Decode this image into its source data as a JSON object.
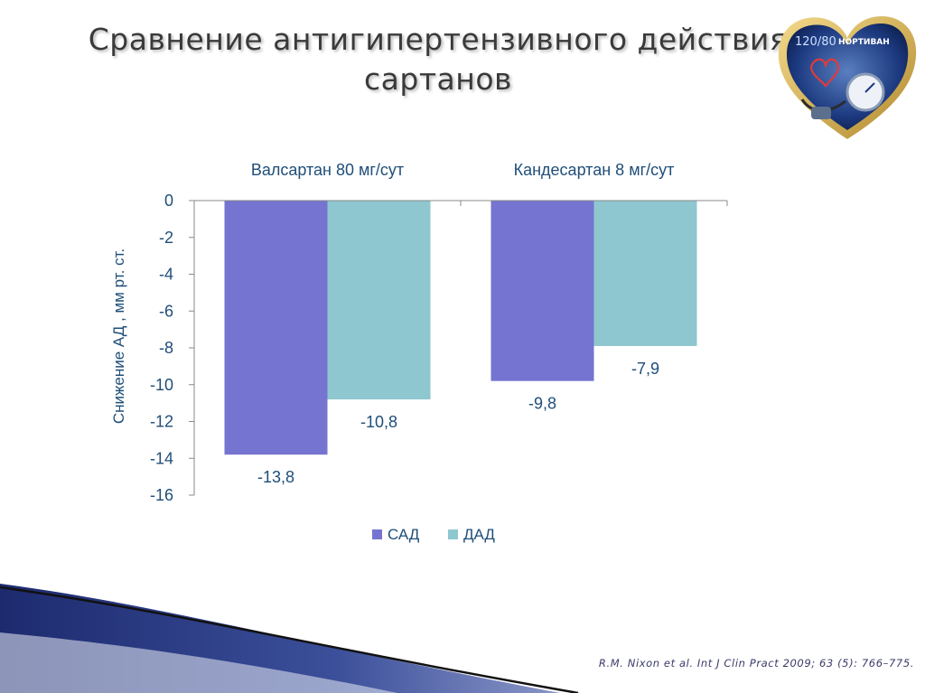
{
  "slide": {
    "title_line1": "Сравнение антигипертензивного действия",
    "title_line2": "сартанов",
    "logo_text_bp": "120/80",
    "logo_text_brand": "НОРТИВАН",
    "citation": "R.M. Nixon et al. Int J Clin Pract 2009; 63 (5): 766–775."
  },
  "colors": {
    "sad": "#7574d0",
    "dad": "#8ec7cf",
    "axis_text": "#1f4e79",
    "value_text": "#1f4e79"
  },
  "chart_data": {
    "type": "bar",
    "categories": [
      "Валсартан 80 мг/сут",
      "Кандесартан 8 мг/сут"
    ],
    "series": [
      {
        "name": "САД",
        "values": [
          -13.8,
          -9.8
        ],
        "labels": [
          "-13,8",
          "-9,8"
        ]
      },
      {
        "name": "ДАД",
        "values": [
          -10.8,
          -7.9
        ],
        "labels": [
          "-10,8",
          "-7,9"
        ]
      }
    ],
    "ylabel": "Снижение АД , мм рт. ст.",
    "ylim": [
      -16,
      0
    ],
    "yticks": [
      0,
      -2,
      -4,
      -6,
      -8,
      -10,
      -12,
      -14,
      -16
    ],
    "category_axis_position": "top",
    "grid": false,
    "legend_position": "bottom"
  }
}
